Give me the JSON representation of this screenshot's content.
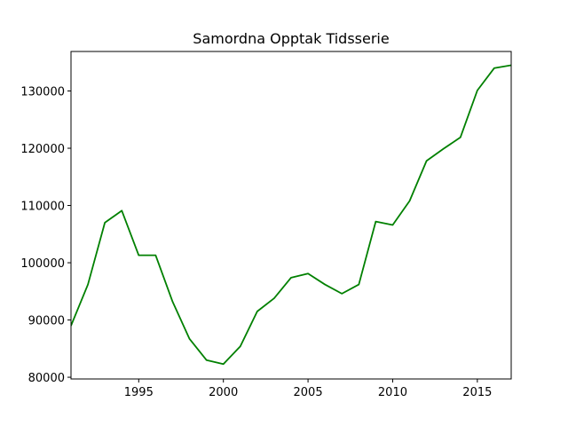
{
  "chart_data": {
    "type": "line",
    "title": "Samordna Opptak Tidsserie",
    "xlabel": "",
    "ylabel": "",
    "xlim": [
      1991,
      2017
    ],
    "ylim": [
      79700,
      136900
    ],
    "grid": false,
    "legend": "none",
    "x_ticks": [
      1995,
      2000,
      2005,
      2010,
      2015
    ],
    "y_ticks": [
      80000,
      90000,
      100000,
      110000,
      120000,
      130000
    ],
    "line_color": "#008000",
    "series": [
      {
        "x": [
          1991,
          1992,
          1993,
          1994,
          1995,
          1996,
          1997,
          1998,
          1999,
          2000,
          2001,
          2002,
          2003,
          2004,
          2005,
          2006,
          2007,
          2008,
          2009,
          2010,
          2011,
          2012,
          2013,
          2014,
          2015,
          2016,
          2017
        ],
        "values": [
          89000,
          96200,
          107000,
          109100,
          101300,
          101300,
          93200,
          86700,
          83000,
          82300,
          85400,
          91500,
          93800,
          97400,
          98100,
          96200,
          94600,
          96200,
          107200,
          106600,
          110800,
          117800,
          119900,
          121900,
          130100,
          134000,
          134500
        ]
      }
    ]
  }
}
